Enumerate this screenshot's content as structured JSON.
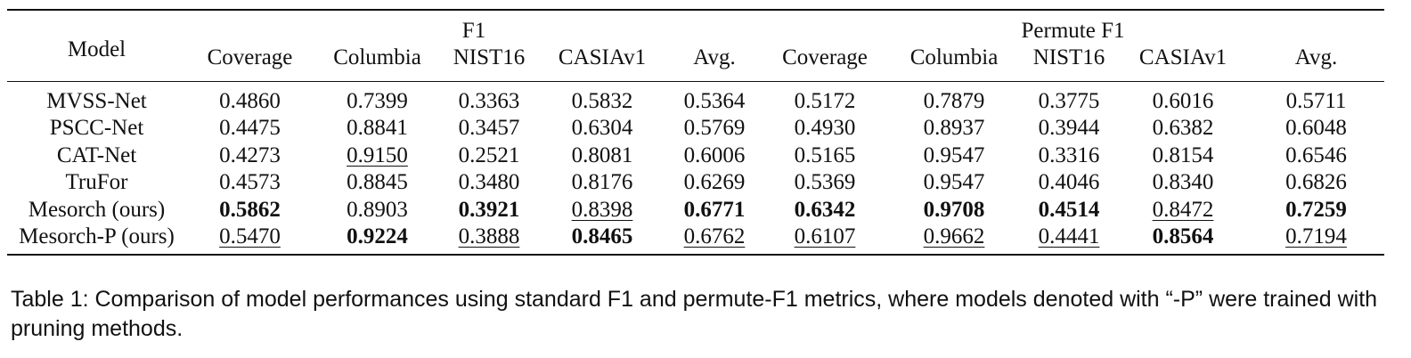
{
  "table": {
    "model_header": "Model",
    "group_headers": [
      "F1",
      "Permute F1"
    ],
    "sub_headers": [
      "Coverage",
      "Columbia",
      "NIST16",
      "CASIAv1",
      "Avg.",
      "Coverage",
      "Columbia",
      "NIST16",
      "CASIAv1",
      "Avg."
    ],
    "rows": [
      {
        "model": "MVSS-Net",
        "values": [
          "0.4860",
          "0.7399",
          "0.3363",
          "0.5832",
          "0.5364",
          "0.5172",
          "0.7879",
          "0.3775",
          "0.6016",
          "0.5711"
        ]
      },
      {
        "model": "PSCC-Net",
        "values": [
          "0.4475",
          "0.8841",
          "0.3457",
          "0.6304",
          "0.5769",
          "0.4930",
          "0.8937",
          "0.3944",
          "0.6382",
          "0.6048"
        ]
      },
      {
        "model": "CAT-Net",
        "values": [
          "0.4273",
          "0.9150",
          "0.2521",
          "0.8081",
          "0.6006",
          "0.5165",
          "0.9547",
          "0.3316",
          "0.8154",
          "0.6546"
        ]
      },
      {
        "model": "TruFor",
        "values": [
          "0.4573",
          "0.8845",
          "0.3480",
          "0.8176",
          "0.6269",
          "0.5369",
          "0.9547",
          "0.4046",
          "0.8340",
          "0.6826"
        ]
      },
      {
        "model": "Mesorch (ours)",
        "values": [
          "0.5862",
          "0.8903",
          "0.3921",
          "0.8398",
          "0.6771",
          "0.6342",
          "0.9708",
          "0.4514",
          "0.8472",
          "0.7259"
        ]
      },
      {
        "model": "Mesorch-P (ours)",
        "values": [
          "0.5470",
          "0.9224",
          "0.3888",
          "0.8465",
          "0.6762",
          "0.6107",
          "0.9662",
          "0.4441",
          "0.8564",
          "0.7194"
        ]
      }
    ]
  },
  "caption": "Table 1: Comparison of model performances using standard F1 and permute-F1 metrics, where models denoted with “-P” were trained with pruning methods."
}
